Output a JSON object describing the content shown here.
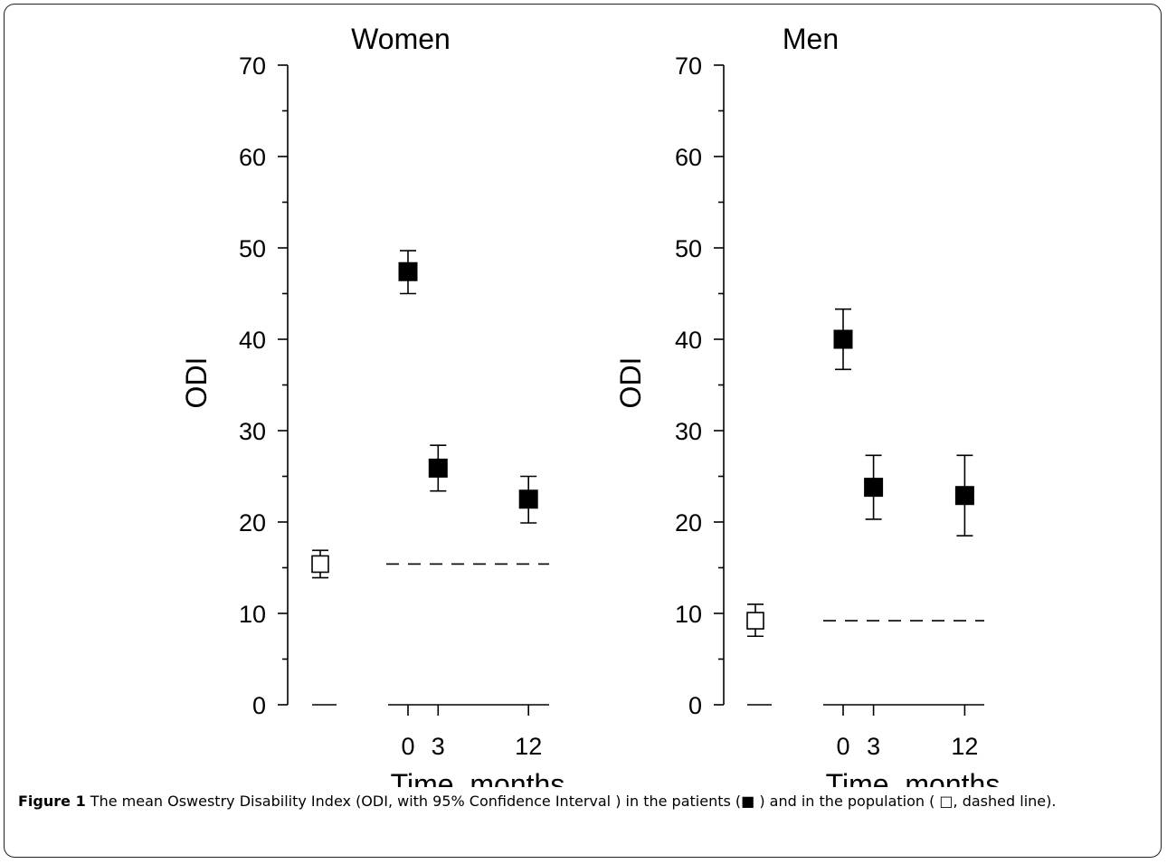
{
  "chart_data": [
    {
      "type": "scatter",
      "panel": "women",
      "title": "Women",
      "ylabel": "ODI",
      "xlabel": "Time, months",
      "ylim": [
        0,
        70
      ],
      "yticks": [
        0,
        10,
        20,
        30,
        40,
        50,
        60,
        70
      ],
      "xticks": [
        0,
        3,
        12
      ],
      "population": {
        "mean": 15.4,
        "ci_low": 13.9,
        "ci_high": 16.9
      },
      "patients": [
        {
          "x": 0,
          "mean": 47.4,
          "ci_low": 45.0,
          "ci_high": 49.7
        },
        {
          "x": 3,
          "mean": 25.9,
          "ci_low": 23.4,
          "ci_high": 28.4
        },
        {
          "x": 12,
          "mean": 22.5,
          "ci_low": 19.9,
          "ci_high": 25.0
        }
      ]
    },
    {
      "type": "scatter",
      "panel": "men",
      "title": "Men",
      "ylabel": "ODI",
      "xlabel": "Time, months",
      "ylim": [
        0,
        70
      ],
      "yticks": [
        0,
        10,
        20,
        30,
        40,
        50,
        60,
        70
      ],
      "xticks": [
        0,
        3,
        12
      ],
      "population": {
        "mean": 9.2,
        "ci_low": 7.5,
        "ci_high": 11.0
      },
      "patients": [
        {
          "x": 0,
          "mean": 40.0,
          "ci_low": 36.7,
          "ci_high": 43.3
        },
        {
          "x": 3,
          "mean": 23.8,
          "ci_low": 20.3,
          "ci_high": 27.3
        },
        {
          "x": 12,
          "mean": 22.9,
          "ci_low": 18.5,
          "ci_high": 27.3
        }
      ]
    }
  ],
  "caption": {
    "label": "Figure 1",
    "text": "The mean Oswestry Disability Index (ODI, with 95% Confidence Interval ) in the patients (■ ) and in the population ( □, dashed line)."
  },
  "colors": {
    "ink": "#000000",
    "background": "#ffffff"
  }
}
